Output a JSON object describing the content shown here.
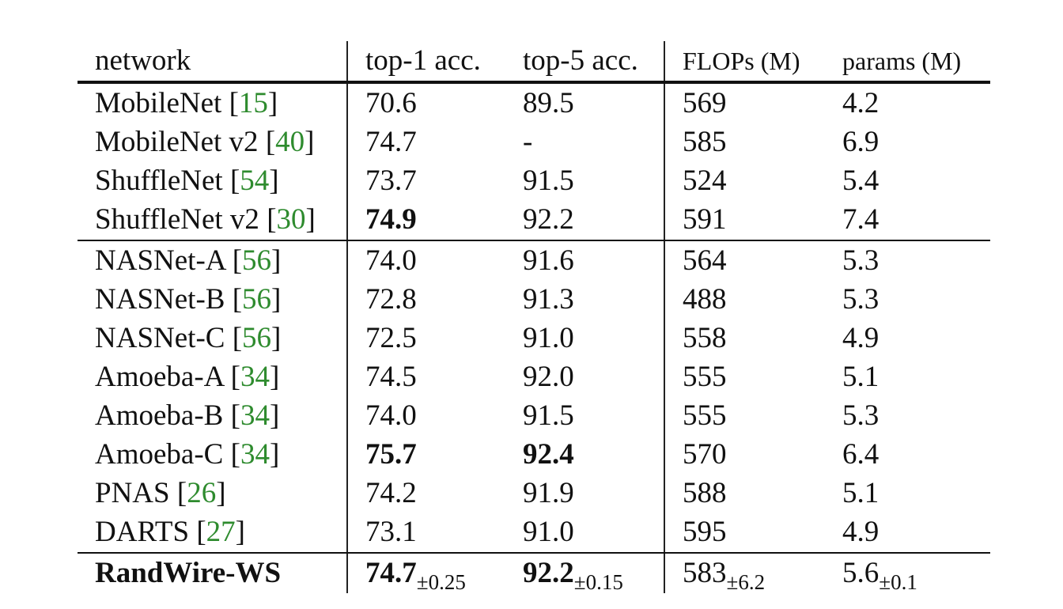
{
  "table": {
    "headers": [
      "network",
      "top-1 acc.",
      "top-5 acc.",
      "FLOPs (M)",
      "params (M)"
    ],
    "groups": [
      [
        {
          "name": "MobileNet",
          "cite": "15",
          "top1": "70.6",
          "top5": "89.5",
          "flops": "569",
          "params": "4.2"
        },
        {
          "name": "MobileNet v2",
          "cite": "40",
          "top1": "74.7",
          "top5": "-",
          "flops": "585",
          "params": "6.9"
        },
        {
          "name": "ShuffleNet",
          "cite": "54",
          "top1": "73.7",
          "top5": "91.5",
          "flops": "524",
          "params": "5.4"
        },
        {
          "name": "ShuffleNet v2",
          "cite": "30",
          "top1": "74.9",
          "top1_bold": true,
          "top5": "92.2",
          "flops": "591",
          "params": "7.4"
        }
      ],
      [
        {
          "name": "NASNet-A",
          "cite": "56",
          "top1": "74.0",
          "top5": "91.6",
          "flops": "564",
          "params": "5.3"
        },
        {
          "name": "NASNet-B",
          "cite": "56",
          "top1": "72.8",
          "top5": "91.3",
          "flops": "488",
          "params": "5.3"
        },
        {
          "name": "NASNet-C",
          "cite": "56",
          "top1": "72.5",
          "top5": "91.0",
          "flops": "558",
          "params": "4.9"
        },
        {
          "name": "Amoeba-A",
          "cite": "34",
          "top1": "74.5",
          "top5": "92.0",
          "flops": "555",
          "params": "5.1"
        },
        {
          "name": "Amoeba-B",
          "cite": "34",
          "top1": "74.0",
          "top5": "91.5",
          "flops": "555",
          "params": "5.3"
        },
        {
          "name": "Amoeba-C",
          "cite": "34",
          "top1": "75.7",
          "top1_bold": true,
          "top5": "92.4",
          "top5_bold": true,
          "flops": "570",
          "params": "6.4"
        },
        {
          "name": "PNAS",
          "cite": "26",
          "top1": "74.2",
          "top5": "91.9",
          "flops": "588",
          "params": "5.1"
        },
        {
          "name": "DARTS",
          "cite": "27",
          "top1": "73.1",
          "top5": "91.0",
          "flops": "595",
          "params": "4.9"
        }
      ]
    ],
    "ours": {
      "name": "RandWire-WS",
      "top1": "74.7",
      "top1_pm": "±0.25",
      "top5": "92.2",
      "top5_pm": "±0.15",
      "flops": "583",
      "flops_pm": "±6.2",
      "params": "5.6",
      "params_pm": "±0.1"
    }
  }
}
